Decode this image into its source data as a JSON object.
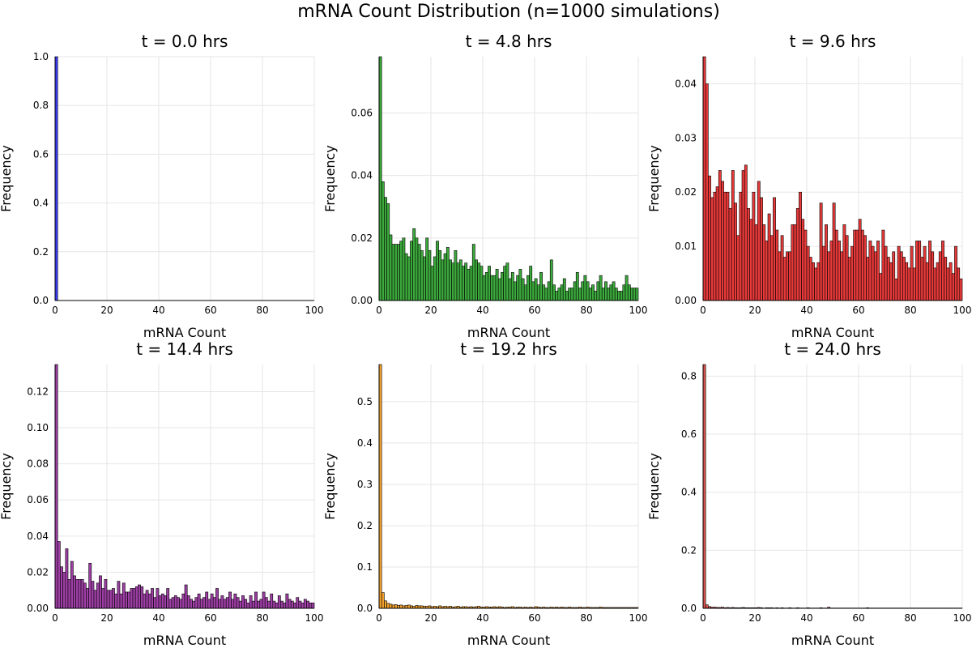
{
  "figure": {
    "title": "mRNA Count Distribution (n=1000 simulations)"
  },
  "chart_data": [
    {
      "type": "bar",
      "title": "t = 0.0 hrs",
      "xlabel": "mRNA Count",
      "ylabel": "Frequency",
      "xlim": [
        0,
        100
      ],
      "ylim": [
        0,
        1.0
      ],
      "xticks": [
        0,
        20,
        40,
        60,
        80,
        100
      ],
      "yticks": [
        0.0,
        0.2,
        0.4,
        0.6,
        0.8,
        1.0
      ],
      "ytick_labels": [
        "0.0",
        "0.2",
        "0.4",
        "0.6",
        "0.8",
        "1.0"
      ],
      "color": "#3b3bf5",
      "grid": true,
      "values": [
        1.0
      ]
    },
    {
      "type": "bar",
      "title": "t = 4.8 hrs",
      "xlabel": "mRNA Count",
      "ylabel": "Frequency",
      "xlim": [
        0,
        100
      ],
      "ylim": [
        0,
        0.078
      ],
      "xticks": [
        0,
        20,
        40,
        60,
        80,
        100
      ],
      "yticks": [
        0.0,
        0.02,
        0.04,
        0.06
      ],
      "ytick_labels": [
        "0.00",
        "0.02",
        "0.04",
        "0.06"
      ],
      "color": "#3ca93c",
      "grid": true,
      "values": [
        0.078,
        0.038,
        0.033,
        0.031,
        0.021,
        0.018,
        0.018,
        0.018,
        0.019,
        0.02,
        0.015,
        0.014,
        0.019,
        0.023,
        0.02,
        0.018,
        0.016,
        0.014,
        0.02,
        0.016,
        0.011,
        0.014,
        0.019,
        0.016,
        0.013,
        0.015,
        0.017,
        0.013,
        0.012,
        0.016,
        0.012,
        0.013,
        0.011,
        0.012,
        0.01,
        0.011,
        0.018,
        0.013,
        0.012,
        0.011,
        0.008,
        0.009,
        0.011,
        0.008,
        0.008,
        0.01,
        0.007,
        0.009,
        0.011,
        0.012,
        0.007,
        0.009,
        0.006,
        0.008,
        0.01,
        0.007,
        0.005,
        0.008,
        0.011,
        0.006,
        0.007,
        0.005,
        0.009,
        0.005,
        0.004,
        0.006,
        0.013,
        0.005,
        0.003,
        0.004,
        0.005,
        0.007,
        0.003,
        0.004,
        0.004,
        0.006,
        0.009,
        0.004,
        0.006,
        0.008,
        0.006,
        0.004,
        0.005,
        0.003,
        0.006,
        0.008,
        0.004,
        0.006,
        0.004,
        0.005,
        0.006,
        0.004,
        0.003,
        0.003,
        0.005,
        0.008,
        0.005,
        0.004,
        0.004,
        0.004
      ]
    },
    {
      "type": "bar",
      "title": "t = 9.6 hrs",
      "xlabel": "mRNA Count",
      "ylabel": "Frequency",
      "xlim": [
        0,
        100
      ],
      "ylim": [
        0,
        0.045
      ],
      "xticks": [
        0,
        20,
        40,
        60,
        80,
        100
      ],
      "yticks": [
        0.0,
        0.01,
        0.02,
        0.03,
        0.04
      ],
      "ytick_labels": [
        "0.00",
        "0.01",
        "0.02",
        "0.03",
        "0.04"
      ],
      "color": "#e83a3a",
      "grid": true,
      "values": [
        0.045,
        0.04,
        0.023,
        0.019,
        0.02,
        0.021,
        0.024,
        0.022,
        0.02,
        0.02,
        0.017,
        0.024,
        0.018,
        0.012,
        0.02,
        0.024,
        0.025,
        0.017,
        0.015,
        0.02,
        0.014,
        0.022,
        0.019,
        0.014,
        0.011,
        0.016,
        0.012,
        0.019,
        0.013,
        0.009,
        0.012,
        0.008,
        0.009,
        0.009,
        0.014,
        0.014,
        0.017,
        0.02,
        0.015,
        0.013,
        0.01,
        0.008,
        0.007,
        0.006,
        0.007,
        0.018,
        0.01,
        0.014,
        0.009,
        0.011,
        0.018,
        0.013,
        0.011,
        0.009,
        0.014,
        0.012,
        0.008,
        0.01,
        0.013,
        0.013,
        0.015,
        0.013,
        0.012,
        0.008,
        0.011,
        0.01,
        0.009,
        0.011,
        0.005,
        0.013,
        0.01,
        0.008,
        0.007,
        0.009,
        0.004,
        0.01,
        0.009,
        0.008,
        0.007,
        0.006,
        0.01,
        0.006,
        0.011,
        0.011,
        0.008,
        0.01,
        0.007,
        0.011,
        0.009,
        0.006,
        0.007,
        0.009,
        0.011,
        0.008,
        0.006,
        0.007,
        0.005,
        0.01,
        0.006,
        0.004
      ]
    },
    {
      "type": "bar",
      "title": "t = 14.4 hrs",
      "xlabel": "mRNA Count",
      "ylabel": "Frequency",
      "xlim": [
        0,
        100
      ],
      "ylim": [
        0,
        0.135
      ],
      "xticks": [
        0,
        20,
        40,
        60,
        80,
        100
      ],
      "yticks": [
        0.0,
        0.02,
        0.04,
        0.06,
        0.08,
        0.1,
        0.12
      ],
      "ytick_labels": [
        "0.00",
        "0.02",
        "0.04",
        "0.06",
        "0.08",
        "0.10",
        "0.12"
      ],
      "color": "#9e3fa5",
      "grid": true,
      "values": [
        0.135,
        0.037,
        0.023,
        0.02,
        0.033,
        0.016,
        0.026,
        0.018,
        0.016,
        0.016,
        0.016,
        0.014,
        0.011,
        0.025,
        0.015,
        0.01,
        0.014,
        0.018,
        0.011,
        0.016,
        0.01,
        0.01,
        0.011,
        0.008,
        0.015,
        0.008,
        0.014,
        0.009,
        0.009,
        0.011,
        0.011,
        0.012,
        0.013,
        0.012,
        0.008,
        0.01,
        0.008,
        0.011,
        0.006,
        0.011,
        0.007,
        0.008,
        0.007,
        0.011,
        0.005,
        0.006,
        0.007,
        0.006,
        0.005,
        0.008,
        0.013,
        0.007,
        0.005,
        0.004,
        0.006,
        0.008,
        0.005,
        0.006,
        0.009,
        0.005,
        0.008,
        0.006,
        0.011,
        0.005,
        0.007,
        0.005,
        0.006,
        0.009,
        0.005,
        0.008,
        0.006,
        0.004,
        0.007,
        0.005,
        0.003,
        0.007,
        0.004,
        0.009,
        0.004,
        0.005,
        0.009,
        0.006,
        0.004,
        0.008,
        0.004,
        0.003,
        0.007,
        0.004,
        0.003,
        0.008,
        0.005,
        0.004,
        0.003,
        0.006,
        0.004,
        0.003,
        0.005,
        0.004,
        0.003,
        0.003
      ]
    },
    {
      "type": "bar",
      "title": "t = 19.2 hrs",
      "xlabel": "mRNA Count",
      "ylabel": "Frequency",
      "xlim": [
        0,
        100
      ],
      "ylim": [
        0,
        0.59
      ],
      "xticks": [
        0,
        20,
        40,
        60,
        80,
        100
      ],
      "yticks": [
        0.0,
        0.1,
        0.2,
        0.3,
        0.4,
        0.5
      ],
      "ytick_labels": [
        "0.0",
        "0.1",
        "0.2",
        "0.3",
        "0.4",
        "0.5"
      ],
      "color": "#f2a12e",
      "grid": true,
      "values": [
        0.59,
        0.038,
        0.018,
        0.012,
        0.01,
        0.008,
        0.009,
        0.007,
        0.008,
        0.006,
        0.007,
        0.008,
        0.006,
        0.005,
        0.007,
        0.006,
        0.006,
        0.005,
        0.005,
        0.006,
        0.004,
        0.005,
        0.004,
        0.006,
        0.004,
        0.005,
        0.004,
        0.005,
        0.003,
        0.004,
        0.005,
        0.003,
        0.004,
        0.004,
        0.003,
        0.004,
        0.003,
        0.004,
        0.005,
        0.003,
        0.003,
        0.004,
        0.003,
        0.003,
        0.004,
        0.003,
        0.004,
        0.003,
        0.002,
        0.003,
        0.003,
        0.004,
        0.002,
        0.003,
        0.003,
        0.002,
        0.003,
        0.002,
        0.003,
        0.002,
        0.004,
        0.003,
        0.002,
        0.003,
        0.002,
        0.002,
        0.003,
        0.002,
        0.003,
        0.002,
        0.003,
        0.002,
        0.002,
        0.003,
        0.002,
        0.002,
        0.002,
        0.003,
        0.002,
        0.002,
        0.003,
        0.002,
        0.002,
        0.002,
        0.002,
        0.003,
        0.002,
        0.002,
        0.002,
        0.002,
        0.002,
        0.002,
        0.002,
        0.002,
        0.002,
        0.002,
        0.002,
        0.002,
        0.002,
        0.002
      ]
    },
    {
      "type": "bar",
      "title": "t = 24.0 hrs",
      "xlabel": "mRNA Count",
      "ylabel": "Frequency",
      "xlim": [
        0,
        100
      ],
      "ylim": [
        0,
        0.84
      ],
      "xticks": [
        0,
        20,
        40,
        60,
        80,
        100
      ],
      "yticks": [
        0.0,
        0.2,
        0.4,
        0.6,
        0.8
      ],
      "ytick_labels": [
        "0.0",
        "0.2",
        "0.4",
        "0.6",
        "0.8"
      ],
      "color": "#d9534f",
      "grid": true,
      "values": [
        0.84,
        0.012,
        0.006,
        0.004,
        0.004,
        0.003,
        0.003,
        0.004,
        0.002,
        0.003,
        0.002,
        0.003,
        0.002,
        0.002,
        0.002,
        0.003,
        0.002,
        0.002,
        0.002,
        0.002,
        0.002,
        0.003,
        0.002,
        0.001,
        0.002,
        0.002,
        0.002,
        0.001,
        0.002,
        0.001,
        0.002,
        0.001,
        0.001,
        0.002,
        0.001,
        0.001,
        0.002,
        0.001,
        0.001,
        0.001,
        0.002,
        0.001,
        0.001,
        0.001,
        0.001,
        0.002,
        0.001,
        0.001,
        0.004,
        0.001,
        0.001,
        0.001,
        0.001,
        0.001,
        0.001,
        0.001,
        0.001,
        0.001,
        0.001,
        0.001,
        0.001,
        0.001,
        0.001,
        0.002,
        0.001,
        0.001,
        0.001,
        0.001,
        0.001,
        0.001,
        0.001,
        0.001,
        0.001,
        0.001,
        0.001,
        0.001,
        0.001,
        0.001,
        0.001,
        0.001,
        0.001,
        0.001,
        0.001,
        0.001,
        0.001,
        0.001,
        0.001,
        0.001,
        0.001,
        0.001,
        0.001,
        0.001,
        0.001,
        0.001,
        0.001,
        0.001,
        0.001,
        0.001,
        0.001,
        0.001
      ]
    }
  ]
}
